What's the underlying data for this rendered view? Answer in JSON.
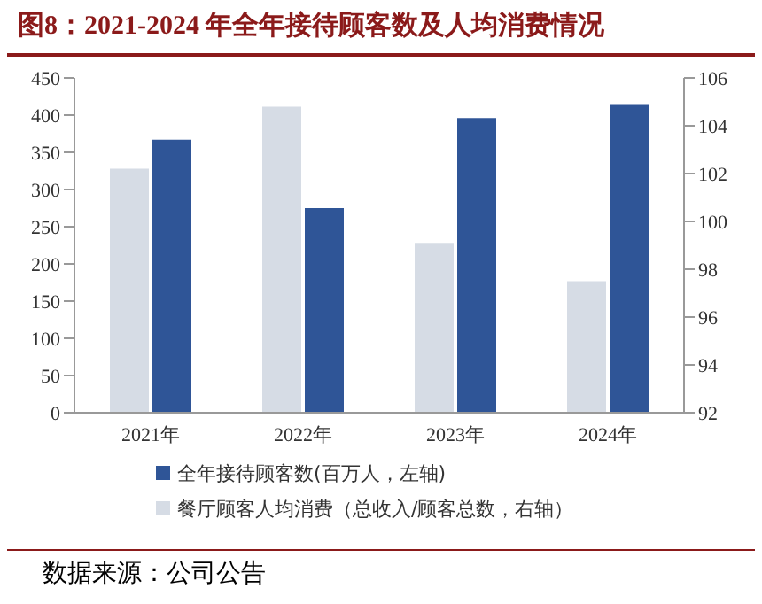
{
  "chart_data": {
    "type": "bar",
    "title": "图8：2021-2024 年全年接待顾客数及人均消费情况",
    "categories": [
      "2021年",
      "2022年",
      "2023年",
      "2024年"
    ],
    "series": [
      {
        "name": "全年接待顾客数(百万人，左轴)",
        "color": "#2f5597",
        "values": [
          367,
          275,
          396,
          415
        ]
      },
      {
        "name": "餐厅顾客人均消费（总收入/顾客总数，右轴）",
        "color": "#d6dce5",
        "values": [
          102.2,
          104.8,
          99.1,
          97.5
        ],
        "axis": "y2"
      }
    ],
    "ylim": [
      0,
      450
    ],
    "yticks": [
      0,
      50,
      100,
      150,
      200,
      250,
      300,
      350,
      400,
      450
    ],
    "y2lim": [
      92,
      106
    ],
    "y2ticks": [
      92,
      94,
      96,
      98,
      100,
      102,
      104,
      106
    ],
    "legend": "bottom",
    "annotations": [
      "数据来源：公司公告"
    ]
  }
}
